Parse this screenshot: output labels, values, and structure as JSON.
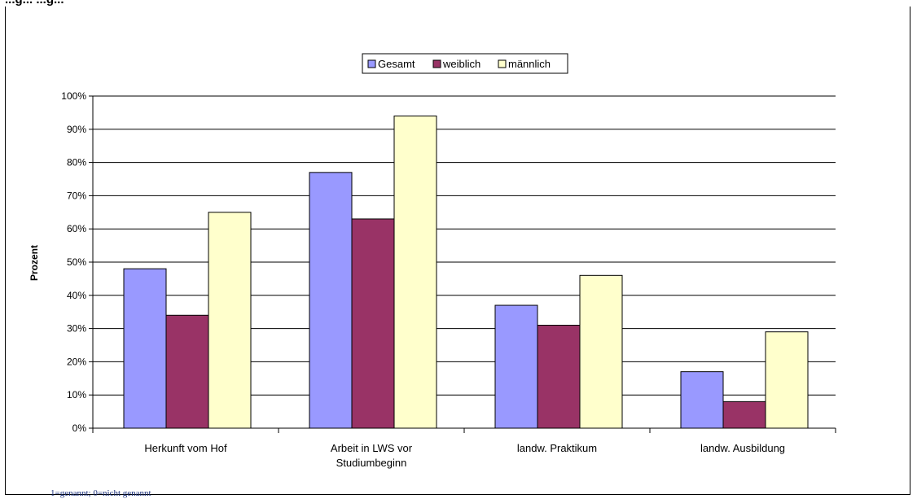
{
  "header_fragment": "...g... ...g...",
  "footnote": "1=genannt; 0=nicht genannt",
  "colors": {
    "Gesamt": "#9999ff",
    "weiblich": "#993366",
    "männlich": "#ffffcc"
  },
  "chart_data": {
    "type": "bar",
    "title": "",
    "xlabel": "",
    "ylabel": "Prozent",
    "ylim": [
      0,
      100
    ],
    "yticks": [
      "0%",
      "10%",
      "20%",
      "30%",
      "40%",
      "50%",
      "60%",
      "70%",
      "80%",
      "90%",
      "100%"
    ],
    "grid": true,
    "legend_position": "top-center",
    "categories": [
      [
        "Herkunft vom Hof"
      ],
      [
        "Arbeit in LWS vor",
        "Studiumbeginn"
      ],
      [
        "landw. Praktikum"
      ],
      [
        "landw. Ausbildung"
      ]
    ],
    "series": [
      {
        "name": "Gesamt",
        "values": [
          48,
          77,
          37,
          17
        ]
      },
      {
        "name": "weiblich",
        "values": [
          34,
          63,
          31,
          8
        ]
      },
      {
        "name": "männlich",
        "values": [
          65,
          94,
          46,
          29
        ]
      }
    ]
  }
}
